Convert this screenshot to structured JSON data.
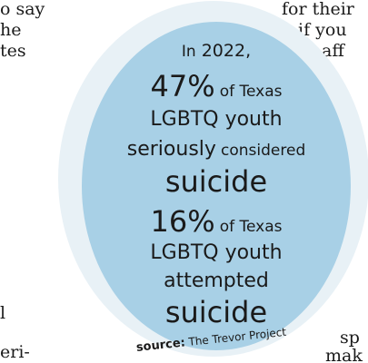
{
  "background_text": {
    "left_fragments": [
      "o say",
      "he",
      "tes",
      "l",
      "eri-"
    ],
    "right_fragments": [
      "for their",
      "if you",
      "aff",
      "sp",
      "mak"
    ]
  },
  "infographic": {
    "year_prefix": "In",
    "year": "2022,",
    "stat1_value": "47%",
    "stat1_of": "of Texas",
    "stat1_group": "LGBTQ youth",
    "stat1_adverb": "seriously",
    "stat1_verb": "considered",
    "stat1_topic": "suicide",
    "stat2_value": "16%",
    "stat2_of": "of Texas",
    "stat2_group": "LGBTQ youth",
    "stat2_verb": "attempted",
    "stat2_topic": "suicide",
    "source_label": "source:",
    "source_name": "The Trevor Project"
  },
  "colors": {
    "circle_inner": "#a8d0e6",
    "circle_outer": "#e8f1f6",
    "text": "#1a1a1a"
  }
}
